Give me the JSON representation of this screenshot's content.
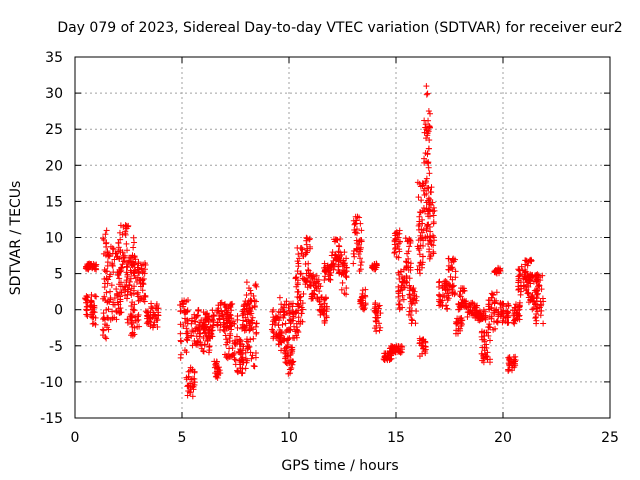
{
  "chart_data": {
    "type": "scatter",
    "title": "Day 079 of 2023, Sidereal Day-to-day VTEC variation (SDTVAR) for receiver eur2",
    "xlabel": "GPS time / hours",
    "ylabel": "SDTVAR / TECUs",
    "xlim": [
      0,
      25
    ],
    "ylim": [
      -15,
      35
    ],
    "xticks": [
      "0",
      "5",
      "10",
      "15",
      "20",
      "25"
    ],
    "yticks": [
      "-15",
      "-10",
      "-5",
      "0",
      "5",
      "10",
      "15",
      "20",
      "25",
      "30",
      "35"
    ],
    "grid": true,
    "marker": "+",
    "color": "#ff0000",
    "segments": [
      {
        "t0": 0.45,
        "t1": 0.6,
        "lo": -1,
        "hi": 2
      },
      {
        "t0": 0.5,
        "t1": 1.0,
        "lo": 5.5,
        "hi": 6.5
      },
      {
        "t0": 0.7,
        "t1": 1.0,
        "lo": -2.5,
        "hi": 2.5
      },
      {
        "t0": 1.3,
        "t1": 1.6,
        "lo": -4,
        "hi": 11
      },
      {
        "t0": 1.6,
        "t1": 2.2,
        "lo": -2,
        "hi": 9
      },
      {
        "t0": 2.0,
        "t1": 2.5,
        "lo": 2,
        "hi": 12
      },
      {
        "t0": 2.4,
        "t1": 2.8,
        "lo": -2,
        "hi": 10
      },
      {
        "t0": 2.6,
        "t1": 3.0,
        "lo": -4,
        "hi": 7
      },
      {
        "t0": 3.0,
        "t1": 3.3,
        "lo": 1,
        "hi": 6.5
      },
      {
        "t0": 3.3,
        "t1": 3.5,
        "lo": -2,
        "hi": 0
      },
      {
        "t0": 3.5,
        "t1": 3.9,
        "lo": -2.5,
        "hi": 1
      },
      {
        "t0": 4.9,
        "t1": 5.3,
        "lo": -7,
        "hi": 1.5
      },
      {
        "t0": 5.2,
        "t1": 5.6,
        "lo": -12,
        "hi": -8
      },
      {
        "t0": 5.4,
        "t1": 5.8,
        "lo": -5,
        "hi": 0
      },
      {
        "t0": 5.8,
        "t1": 6.3,
        "lo": -6,
        "hi": -1
      },
      {
        "t0": 6.0,
        "t1": 6.5,
        "lo": -4,
        "hi": 0
      },
      {
        "t0": 6.5,
        "t1": 6.8,
        "lo": -9.5,
        "hi": -7
      },
      {
        "t0": 6.6,
        "t1": 7.3,
        "lo": -3,
        "hi": 1
      },
      {
        "t0": 7.0,
        "t1": 7.6,
        "lo": -7,
        "hi": 1
      },
      {
        "t0": 7.5,
        "t1": 8.0,
        "lo": -9,
        "hi": -4
      },
      {
        "t0": 7.8,
        "t1": 8.3,
        "lo": -3,
        "hi": 1.5
      },
      {
        "t0": 8.0,
        "t1": 8.5,
        "lo": -8,
        "hi": 4
      },
      {
        "t0": 9.2,
        "t1": 9.6,
        "lo": -4,
        "hi": 0
      },
      {
        "t0": 9.5,
        "t1": 10.0,
        "lo": -6,
        "hi": 2
      },
      {
        "t0": 9.8,
        "t1": 10.2,
        "lo": -9,
        "hi": -5
      },
      {
        "t0": 10.0,
        "t1": 10.5,
        "lo": -4,
        "hi": 1
      },
      {
        "t0": 10.3,
        "t1": 10.7,
        "lo": -2,
        "hi": 9
      },
      {
        "t0": 10.7,
        "t1": 11.0,
        "lo": 3,
        "hi": 10
      },
      {
        "t0": 11.0,
        "t1": 11.5,
        "lo": 1,
        "hi": 5
      },
      {
        "t0": 11.4,
        "t1": 11.8,
        "lo": -2,
        "hi": 2
      },
      {
        "t0": 11.6,
        "t1": 12.0,
        "lo": 4,
        "hi": 6.5
      },
      {
        "t0": 12.0,
        "t1": 12.4,
        "lo": 5,
        "hi": 10
      },
      {
        "t0": 12.3,
        "t1": 12.7,
        "lo": 2,
        "hi": 8
      },
      {
        "t0": 13.0,
        "t1": 13.4,
        "lo": 5,
        "hi": 13
      },
      {
        "t0": 13.3,
        "t1": 13.6,
        "lo": 0,
        "hi": 3
      },
      {
        "t0": 13.8,
        "t1": 14.1,
        "lo": 5.5,
        "hi": 6.5
      },
      {
        "t0": 14.0,
        "t1": 14.3,
        "lo": -3,
        "hi": 1
      },
      {
        "t0": 14.4,
        "t1": 14.8,
        "lo": -7,
        "hi": -6
      },
      {
        "t0": 14.7,
        "t1": 15.0,
        "lo": -6,
        "hi": -5
      },
      {
        "t0": 14.9,
        "t1": 15.2,
        "lo": 7,
        "hi": 11
      },
      {
        "t0": 15.0,
        "t1": 15.3,
        "lo": -6,
        "hi": -5
      },
      {
        "t0": 15.1,
        "t1": 15.4,
        "lo": 0,
        "hi": 6
      },
      {
        "t0": 15.4,
        "t1": 15.7,
        "lo": 3,
        "hi": 10
      },
      {
        "t0": 15.6,
        "t1": 16.0,
        "lo": -2,
        "hi": 3
      },
      {
        "t0": 16.0,
        "t1": 16.3,
        "lo": 5,
        "hi": 18
      },
      {
        "t0": 16.1,
        "t1": 16.4,
        "lo": -6.5,
        "hi": -4
      },
      {
        "t0": 16.3,
        "t1": 16.6,
        "lo": 9,
        "hi": 31
      },
      {
        "t0": 16.5,
        "t1": 16.8,
        "lo": 7,
        "hi": 17
      },
      {
        "t0": 17.0,
        "t1": 17.5,
        "lo": 0,
        "hi": 4
      },
      {
        "t0": 17.4,
        "t1": 17.8,
        "lo": 2,
        "hi": 7.5
      },
      {
        "t0": 17.8,
        "t1": 18.1,
        "lo": -3.5,
        "hi": -1
      },
      {
        "t0": 17.9,
        "t1": 18.3,
        "lo": 0,
        "hi": 3
      },
      {
        "t0": 18.3,
        "t1": 18.8,
        "lo": -1,
        "hi": 1
      },
      {
        "t0": 18.7,
        "t1": 19.2,
        "lo": -1.5,
        "hi": 0
      },
      {
        "t0": 19.0,
        "t1": 19.4,
        "lo": -7.5,
        "hi": -3
      },
      {
        "t0": 19.3,
        "t1": 19.8,
        "lo": -3,
        "hi": 2.5
      },
      {
        "t0": 19.6,
        "t1": 19.9,
        "lo": 5,
        "hi": 5.8
      },
      {
        "t0": 19.8,
        "t1": 20.3,
        "lo": -2,
        "hi": 1
      },
      {
        "t0": 20.2,
        "t1": 20.6,
        "lo": -8.5,
        "hi": -6.5
      },
      {
        "t0": 20.4,
        "t1": 20.8,
        "lo": -2,
        "hi": 1
      },
      {
        "t0": 20.7,
        "t1": 21.2,
        "lo": 2,
        "hi": 6
      },
      {
        "t0": 21.0,
        "t1": 21.4,
        "lo": 4,
        "hi": 7
      },
      {
        "t0": 21.2,
        "t1": 21.6,
        "lo": 0,
        "hi": 5
      },
      {
        "t0": 21.5,
        "t1": 21.9,
        "lo": -2,
        "hi": 5
      }
    ]
  }
}
